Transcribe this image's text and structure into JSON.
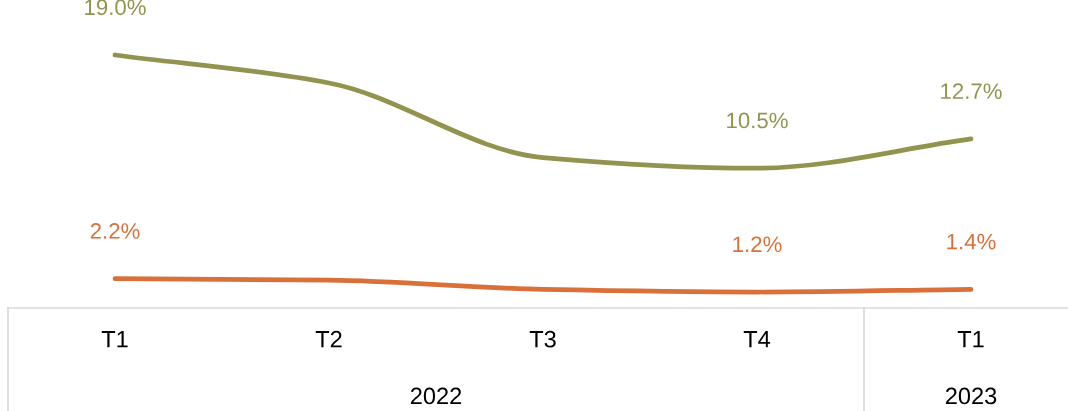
{
  "chart_data": {
    "type": "line",
    "categories": [
      "T1",
      "T2",
      "T3",
      "T4",
      "T1"
    ],
    "series": [
      {
        "color": "#939350",
        "values": [
          19.0,
          16.9,
          11.3,
          10.5,
          12.7
        ],
        "value_labels": [
          "19.0%",
          null,
          null,
          "10.5%",
          "12.7%"
        ]
      },
      {
        "color": "#d9703a",
        "values": [
          2.2,
          2.1,
          1.4,
          1.2,
          1.4
        ],
        "value_labels": [
          "2.2%",
          null,
          null,
          "1.2%",
          "1.4%"
        ]
      }
    ],
    "annotations": [
      "2022",
      "2023"
    ],
    "tick_labels": "x",
    "line_style": "solid"
  }
}
